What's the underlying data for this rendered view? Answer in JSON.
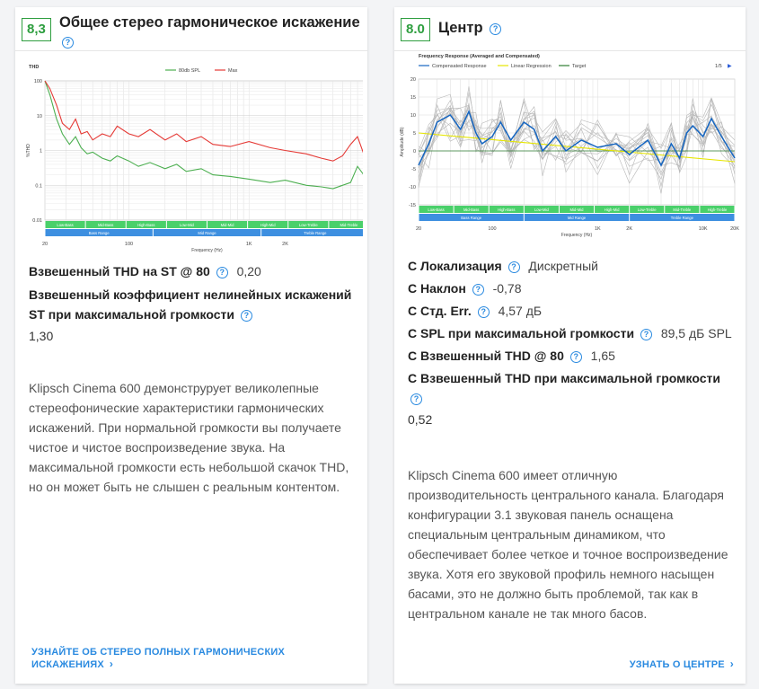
{
  "left_card": {
    "score": "8,3",
    "title": "Общее стерео гармоническое искажение",
    "help_glyph": "?",
    "stats": [
      {
        "label": "Взвешенный THD на ST @ 80",
        "value": "0,20"
      },
      {
        "label": "Взвешенный коэффициент нелинейных искажений ST при максимальной громкости",
        "value": "1,30"
      }
    ],
    "description": "Klipsch Cinema 600 демонструрует великолепные стереофонические характеристики гармонических искажений. При нормальной громкости вы получаете чистое и чистое воспроизведение звука. На максимальной громкости есть небольшой скачок THD, но он может быть не слышен с реальным контентом.",
    "link": "УЗНАЙТЕ ОБ СТЕРЕО ПОЛНЫХ ГАРМОНИЧЕСКИХ ИСКАЖЕНИЯХ",
    "chevron": "›"
  },
  "right_card": {
    "score": "8.0",
    "title": "Центр",
    "help_glyph": "?",
    "stats": [
      {
        "label": "С Локализация",
        "value": "Дискретный"
      },
      {
        "label": "С Наклон",
        "value": "-0,78"
      },
      {
        "label": "С Стд. Err.",
        "value": "4,57 дБ"
      },
      {
        "label": "С SPL при максимальной громкости",
        "value": "89,5 дБ SPL"
      },
      {
        "label": "С Взвешенный THD @ 80",
        "value": "1,65"
      },
      {
        "label": "С Взвешенный THD при максимальной громкости",
        "value": "0,52"
      }
    ],
    "description": "Klipsch Cinema 600 имеет отличную производительность центрального канала. Благодаря конфигурации 3.1 звуковая панель оснащена специальным центральным динамиком, что обеспечивает более четкое и точное воспроизведение звука. Хотя его звуковой профиль немного насыщен басами, это не должно быть проблемой, так как в центральном канале не так много басов.",
    "link": "УЗНАТЬ О ЦЕНТРЕ",
    "chevron": "›"
  },
  "chart_data": [
    {
      "type": "line",
      "title": "THD",
      "xlabel": "Frequency (Hz)",
      "ylabel": "%THD",
      "x_scale": "log",
      "xlim": [
        20,
        10000
      ],
      "ylim": [
        0.01,
        100
      ],
      "y_scale": "log",
      "x_ticks": [
        "20",
        "100",
        "1K",
        "2K",
        "10K"
      ],
      "y_ticks": [
        "100",
        "10",
        "1",
        "0.1",
        "0.01"
      ],
      "legend": "top-center",
      "grid": true,
      "bands_row1": [
        "Low-Bass",
        "Mid-Bass",
        "High-Bass",
        "Low-Mid",
        "Mid-Mid",
        "High-Mid",
        "Low-Treble",
        "Mid-Treble"
      ],
      "bands_row2": [
        "Bass Range",
        "Mid Range",
        "Treble Range"
      ],
      "series": [
        {
          "name": "80db SPL",
          "color": "#4caf50",
          "x": [
            20,
            22,
            25,
            28,
            32,
            36,
            40,
            45,
            50,
            60,
            70,
            80,
            100,
            120,
            150,
            200,
            250,
            300,
            400,
            500,
            700,
            1000,
            1500,
            2000,
            3000,
            4000,
            5000,
            6000,
            7000,
            8000,
            9000,
            10000
          ],
          "y": [
            100,
            40,
            8,
            3,
            1.5,
            2.5,
            1.2,
            0.8,
            0.9,
            0.6,
            0.5,
            0.7,
            0.5,
            0.35,
            0.45,
            0.3,
            0.4,
            0.25,
            0.3,
            0.2,
            0.18,
            0.15,
            0.12,
            0.14,
            0.1,
            0.09,
            0.08,
            0.1,
            0.12,
            0.35,
            0.2,
            0.12
          ]
        },
        {
          "name": "Max",
          "color": "#e53935",
          "x": [
            20,
            22,
            25,
            28,
            32,
            36,
            40,
            45,
            50,
            60,
            70,
            80,
            100,
            120,
            150,
            200,
            250,
            300,
            400,
            500,
            700,
            1000,
            1500,
            2000,
            3000,
            4000,
            5000,
            6000,
            7000,
            8000,
            9000,
            10000
          ],
          "y": [
            100,
            60,
            20,
            6,
            4,
            8,
            3,
            3.5,
            2,
            3,
            2.5,
            5,
            3,
            2.5,
            4,
            2,
            3,
            1.8,
            2.5,
            1.5,
            1.3,
            1.8,
            1.2,
            1,
            0.8,
            0.6,
            0.5,
            0.7,
            1.5,
            2.5,
            0.8,
            0.6
          ]
        }
      ]
    },
    {
      "type": "line",
      "title": "Frequency Response (Averaged and Compensated)",
      "xlabel": "Frequency (Hz)",
      "ylabel": "Amplitude (dB)",
      "x_scale": "log",
      "xlim": [
        20,
        20000
      ],
      "ylim": [
        -15,
        20
      ],
      "x_ticks": [
        "20",
        "100",
        "1K",
        "2K",
        "10K",
        "20K"
      ],
      "y_ticks": [
        "20",
        "15",
        "10",
        "5",
        "0",
        "-5",
        "-10",
        "-15"
      ],
      "legend": "top",
      "legend_page": "1/5",
      "grid": true,
      "bands_row1": [
        "Low-Bass",
        "Mid-Bass",
        "High-Bass",
        "Low-Mid",
        "Mid-Mid",
        "High-Mid",
        "Low-Treble",
        "Mid-Treble",
        "High-Treble"
      ],
      "bands_row2": [
        "Bass Range",
        "Mid Range",
        "Treble Range"
      ],
      "series": [
        {
          "name": "Compensated Response",
          "color": "#1565c0",
          "x": [
            20,
            25,
            30,
            40,
            50,
            60,
            70,
            80,
            100,
            120,
            150,
            200,
            250,
            300,
            400,
            500,
            700,
            1000,
            1500,
            2000,
            3000,
            4000,
            5000,
            6000,
            7000,
            8000,
            10000,
            12000,
            15000,
            20000
          ],
          "y": [
            -4,
            2,
            8,
            10,
            6,
            11,
            5,
            2,
            4,
            8,
            3,
            8,
            6,
            0,
            4,
            0,
            3,
            1,
            2,
            -1,
            3,
            -4,
            2,
            -2,
            5,
            7,
            4,
            9,
            4,
            -2
          ]
        },
        {
          "name": "Linear Regression",
          "color": "#e6e600",
          "x": [
            20,
            20000
          ],
          "y": [
            5,
            -3
          ]
        },
        {
          "name": "Target",
          "color": "#2e7d32",
          "x": [
            20,
            20000
          ],
          "y": [
            0,
            0
          ]
        }
      ]
    }
  ]
}
